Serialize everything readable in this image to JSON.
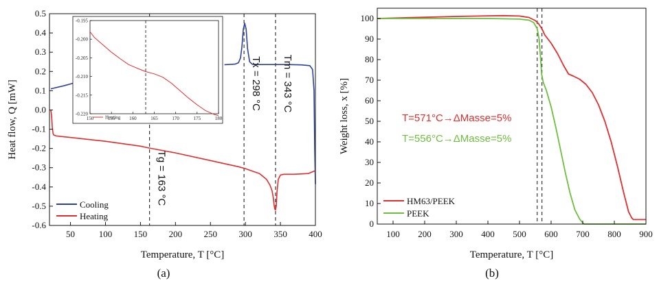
{
  "chart_data": [
    {
      "panel": "(a)",
      "type": "line",
      "xlabel": "Temperature, T [°C]",
      "ylabel": "Heat flow, Q [mW]",
      "xlim": [
        20,
        400
      ],
      "ylim": [
        -0.6,
        0.5
      ],
      "xticks": [
        50,
        100,
        150,
        200,
        250,
        300,
        350,
        400
      ],
      "yticks": [
        -0.6,
        -0.5,
        -0.4,
        -0.3,
        -0.2,
        -0.1,
        0.0,
        0.1,
        0.2,
        0.3,
        0.4,
        0.5
      ],
      "ytick_labels": [
        "-0.6",
        "-0.5",
        "-0.4",
        "-0.3",
        "-0.2",
        "-0.1",
        "0.0",
        "0.1",
        "0.2",
        "0.3",
        "0.4",
        "0.5"
      ],
      "legend": "bottom-left",
      "series": [
        {
          "name": "Cooling",
          "color": "#2b3f9e",
          "segments": [
            {
              "x": [
                22,
                40,
                55,
                60
              ],
              "y": [
                0.11,
                0.125,
                0.14,
                0.15
              ]
            },
            {
              "x": [
                270,
                285,
                290,
                293,
                295,
                297,
                299,
                301,
                303,
                306,
                310,
                320,
                340,
                360,
                380,
                392,
                396,
                398,
                399,
                400
              ],
              "y": [
                0.235,
                0.238,
                0.245,
                0.27,
                0.33,
                0.42,
                0.45,
                0.42,
                0.32,
                0.25,
                0.237,
                0.236,
                0.236,
                0.236,
                0.234,
                0.23,
                0.21,
                0.1,
                -0.2,
                -0.385
              ]
            }
          ]
        },
        {
          "name": "Heating",
          "color": "#e32c2c",
          "x": [
            22,
            23,
            24,
            25,
            26,
            28,
            30,
            60,
            100,
            150,
            163,
            200,
            250,
            290,
            300,
            310,
            320,
            330,
            335,
            338,
            340,
            341,
            342,
            343,
            344,
            345,
            347,
            350,
            355,
            370,
            390,
            398,
            400
          ],
          "y": [
            0.0,
            -0.03,
            -0.09,
            -0.12,
            -0.13,
            -0.133,
            -0.135,
            -0.147,
            -0.163,
            -0.188,
            -0.198,
            -0.223,
            -0.263,
            -0.295,
            -0.305,
            -0.318,
            -0.33,
            -0.36,
            -0.39,
            -0.42,
            -0.46,
            -0.495,
            -0.515,
            -0.52,
            -0.5,
            -0.43,
            -0.36,
            -0.338,
            -0.334,
            -0.334,
            -0.33,
            -0.318,
            -0.317
          ]
        }
      ],
      "annotations": [
        {
          "text": "Tg = 163 °C",
          "x": 163
        },
        {
          "text": "Tx = 298 °C",
          "x": 298
        },
        {
          "text": "Tm = 343 °C",
          "x": 343
        }
      ],
      "inset": {
        "xlim": [
          150,
          180
        ],
        "ylim": [
          -0.22,
          -0.195
        ],
        "xticks": [
          150,
          155,
          160,
          165,
          170,
          175,
          180
        ],
        "yticks": [
          -0.22,
          -0.215,
          -0.21,
          -0.205,
          -0.2,
          -0.195
        ],
        "ytick_labels": [
          "-0.220",
          "-0.215",
          "-0.210",
          "-0.205",
          "-0.200",
          "-0.195"
        ],
        "vline_x": 163,
        "legend": "Heating",
        "series": [
          {
            "name": "Heating",
            "color": "#e32c2c",
            "x": [
              150,
              151,
              153,
              155,
              157,
              159,
              161,
              163,
              165,
              167,
              169,
              171,
              173,
              175,
              177,
              179,
              180
            ],
            "y": [
              -0.198,
              -0.1995,
              -0.2015,
              -0.2035,
              -0.2052,
              -0.2068,
              -0.2078,
              -0.2087,
              -0.2093,
              -0.2102,
              -0.2118,
              -0.2138,
              -0.2158,
              -0.2176,
              -0.2192,
              -0.2202,
              -0.2205
            ]
          }
        ]
      }
    },
    {
      "panel": "(b)",
      "type": "line",
      "xlabel": "Temperature, T [°C]",
      "ylabel": "Weight loss, x [%]",
      "xlim": [
        50,
        900
      ],
      "ylim": [
        0,
        105
      ],
      "xticks": [
        100,
        200,
        300,
        400,
        500,
        600,
        700,
        800,
        900
      ],
      "yticks": [
        0,
        10,
        20,
        30,
        40,
        50,
        60,
        70,
        80,
        90,
        100
      ],
      "legend": "bottom-left",
      "vlines": [
        556,
        571
      ],
      "series": [
        {
          "name": "HM63/PEEK",
          "color": "#e32c2c",
          "x": [
            50,
            100,
            200,
            300,
            400,
            450,
            500,
            530,
            550,
            560,
            571,
            580,
            600,
            620,
            640,
            655,
            670,
            690,
            710,
            730,
            750,
            770,
            790,
            810,
            830,
            845,
            855,
            860,
            870,
            880,
            890,
            900
          ],
          "y": [
            100,
            100.2,
            100.6,
            101,
            101.3,
            101.4,
            101.2,
            100.5,
            99,
            97.5,
            95,
            92,
            88,
            83,
            77,
            73,
            72,
            70.5,
            68,
            64,
            58,
            50,
            40,
            28,
            15,
            6,
            3,
            2.2,
            2.2,
            2.2,
            2.2,
            2.2
          ]
        },
        {
          "name": "PEEK",
          "color": "#6cbf3c",
          "x": [
            50,
            100,
            200,
            300,
            400,
            500,
            530,
            545,
            556,
            562,
            566,
            570,
            575,
            585,
            600,
            615,
            630,
            645,
            660,
            675,
            690,
            700,
            705,
            720,
            800,
            900
          ],
          "y": [
            100,
            100,
            100,
            100,
            100,
            99.7,
            99.2,
            98,
            95,
            90,
            82,
            73,
            69,
            65,
            57,
            47,
            36,
            25,
            15,
            7,
            2.5,
            0.6,
            0,
            0,
            0,
            0
          ]
        }
      ],
      "annotations": [
        {
          "text": "T=571°C→ΔMasse=5%",
          "color": "#e32c2c"
        },
        {
          "text": "T=556°C→ΔMasse=5%",
          "color": "#6cbf3c"
        }
      ]
    }
  ]
}
